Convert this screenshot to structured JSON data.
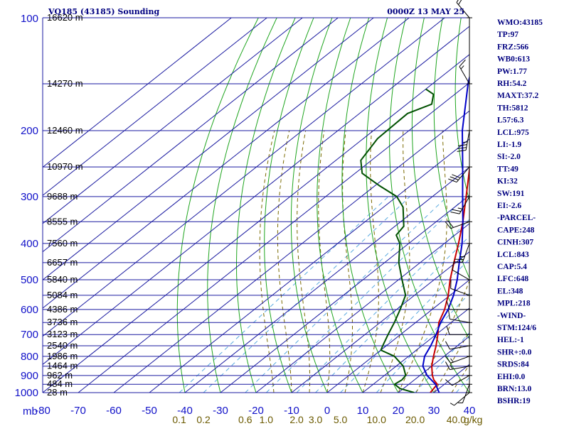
{
  "header": {
    "station": "VQ185 (43185) Sounding",
    "time": "0000Z 13 MAY 25"
  },
  "indices": [
    "WMO:43185",
    "TP:97",
    "FRZ:566",
    "WB0:613",
    "PW:1.77",
    "RH:54.2",
    "MAXT:37.2",
    "TH:5812",
    "L57:6.3",
    "LCL:975",
    "LI:-1.9",
    "SI:-2.0",
    "TT:49",
    "KI:32",
    "SW:191",
    "EI:-2.6",
    "-PARCEL-",
    "CAPE:248",
    "CINH:307",
    "LCL:843",
    "CAP:5.4",
    "LFC:648",
    "EL:348",
    "MPL:218",
    "-WIND-",
    "STM:124/6",
    "HEL:-1",
    "SHR+:0.0",
    "SRDS:84",
    "EHI:0.0",
    "BRN:13.0",
    "BSHR:19"
  ],
  "colors": {
    "isobar": "#1a1aa0",
    "isotherm": "#1a1aa0",
    "dry_adiabat": "#1fa51f",
    "moist_adiabat": "#7a6a00",
    "mixing_ratio": "#5aaae0",
    "temperature": "#c80000",
    "parcel": "#0000c8",
    "dewpoint": "#005000"
  },
  "chart_data": {
    "type": "line",
    "title": "VQ185 (43185) Sounding",
    "pressure_axis_unit": "mb",
    "ylim": [
      1000,
      100
    ],
    "xlim": [
      -80,
      40
    ],
    "pressure_ticks": [
      "100",
      "200",
      "300",
      "400",
      "500",
      "600",
      "700",
      "800",
      "900",
      "1000"
    ],
    "temperature_ticks": [
      "-80",
      "-70",
      "-60",
      "-50",
      "-40",
      "-30",
      "-20",
      "-10",
      "0",
      "10",
      "20",
      "30",
      "40"
    ],
    "mixing_ratio_ticks": [
      "0.1",
      "0.2",
      "0.6",
      "1.0",
      "2.0",
      "3.0",
      "5.0",
      "10.0",
      "20.0",
      "40.0"
    ],
    "mixing_ratio_unit": "g/kg",
    "height_labels": [
      {
        "p": 100,
        "text": "16620 m"
      },
      {
        "p": 150,
        "text": "14270 m"
      },
      {
        "p": 200,
        "text": "12460 m"
      },
      {
        "p": 250,
        "text": "10970 m"
      },
      {
        "p": 300,
        "text": "9688 m"
      },
      {
        "p": 350,
        "text": "8555 m"
      },
      {
        "p": 400,
        "text": "7560 m"
      },
      {
        "p": 450,
        "text": "6657 m"
      },
      {
        "p": 500,
        "text": "5840 m"
      },
      {
        "p": 550,
        "text": "5084 m"
      },
      {
        "p": 600,
        "text": "4386 m"
      },
      {
        "p": 650,
        "text": "3736 m"
      },
      {
        "p": 700,
        "text": "3123 m"
      },
      {
        "p": 750,
        "text": "2540 m"
      },
      {
        "p": 800,
        "text": "1986 m"
      },
      {
        "p": 850,
        "text": "1464 m"
      },
      {
        "p": 900,
        "text": "962 m"
      },
      {
        "p": 950,
        "text": "484 m"
      },
      {
        "p": 1000,
        "text": "28 m"
      }
    ],
    "series": [
      {
        "id": "temperature",
        "points": [
          {
            "p": 1000,
            "t": 29.0
          },
          {
            "p": 950,
            "t": 28.0
          },
          {
            "p": 925,
            "t": 25.5
          },
          {
            "p": 900,
            "t": 23.5
          },
          {
            "p": 850,
            "t": 20.0
          },
          {
            "p": 800,
            "t": 17.0
          },
          {
            "p": 750,
            "t": 14.0
          },
          {
            "p": 700,
            "t": 10.5
          },
          {
            "p": 650,
            "t": 6.5
          },
          {
            "p": 600,
            "t": 3.5
          },
          {
            "p": 550,
            "t": -0.5
          },
          {
            "p": 500,
            "t": -5.5
          },
          {
            "p": 450,
            "t": -10.5
          },
          {
            "p": 400,
            "t": -16.0
          },
          {
            "p": 350,
            "t": -22.5
          },
          {
            "p": 300,
            "t": -30.5
          },
          {
            "p": 250,
            "t": -40.0
          },
          {
            "p": 200,
            "t": -51.5
          },
          {
            "p": 150,
            "t": -66.5
          },
          {
            "p": 130,
            "t": -73.0
          },
          {
            "p": 120,
            "t": -77.0
          },
          {
            "p": 110,
            "t": -80.0
          }
        ]
      },
      {
        "id": "parcel",
        "points": [
          {
            "p": 1000,
            "t": 31.5
          },
          {
            "p": 950,
            "t": 27.5
          },
          {
            "p": 900,
            "t": 22.0
          },
          {
            "p": 850,
            "t": 17.5
          },
          {
            "p": 800,
            "t": 14.5
          },
          {
            "p": 750,
            "t": 12.5
          },
          {
            "p": 700,
            "t": 10.0
          },
          {
            "p": 650,
            "t": 7.0
          },
          {
            "p": 600,
            "t": 4.5
          },
          {
            "p": 550,
            "t": 1.0
          },
          {
            "p": 500,
            "t": -3.5
          },
          {
            "p": 450,
            "t": -9.0
          },
          {
            "p": 400,
            "t": -15.0
          },
          {
            "p": 350,
            "t": -22.5
          },
          {
            "p": 300,
            "t": -31.5
          },
          {
            "p": 250,
            "t": -42.0
          },
          {
            "p": 200,
            "t": -55.0
          },
          {
            "p": 150,
            "t": -70.0
          },
          {
            "p": 135,
            "t": -75.0
          },
          {
            "p": 125,
            "t": -80.0
          }
        ]
      },
      {
        "id": "dewpoint",
        "points": [
          {
            "p": 1000,
            "t": 24.5
          },
          {
            "p": 975,
            "t": 19.0
          },
          {
            "p": 950,
            "t": 16.0
          },
          {
            "p": 925,
            "t": 16.5
          },
          {
            "p": 900,
            "t": 16.0
          },
          {
            "p": 850,
            "t": 12.0
          },
          {
            "p": 800,
            "t": 6.0
          },
          {
            "p": 770,
            "t": 0.0
          },
          {
            "p": 750,
            "t": -1.0
          },
          {
            "p": 700,
            "t": -3.5
          },
          {
            "p": 650,
            "t": -6.0
          },
          {
            "p": 600,
            "t": -9.0
          },
          {
            "p": 550,
            "t": -12.5
          },
          {
            "p": 500,
            "t": -19.0
          },
          {
            "p": 450,
            "t": -26.0
          },
          {
            "p": 400,
            "t": -32.5
          },
          {
            "p": 380,
            "t": -36.5
          },
          {
            "p": 360,
            "t": -37.5
          },
          {
            "p": 320,
            "t": -44.5
          },
          {
            "p": 300,
            "t": -50.0
          },
          {
            "p": 280,
            "t": -59.0
          },
          {
            "p": 260,
            "t": -68.0
          },
          {
            "p": 240,
            "t": -73.0
          },
          {
            "p": 210,
            "t": -76.0
          },
          {
            "p": 180,
            "t": -76.5
          },
          {
            "p": 170,
            "t": -73.0
          },
          {
            "p": 160,
            "t": -76.0
          },
          {
            "p": 155,
            "t": -80.0
          }
        ]
      }
    ],
    "winds": [
      {
        "p": 1000,
        "dir": 230,
        "spd": 5
      },
      {
        "p": 950,
        "dir": 200,
        "spd": 5
      },
      {
        "p": 900,
        "dir": 240,
        "spd": 10
      },
      {
        "p": 850,
        "dir": 260,
        "spd": 15
      },
      {
        "p": 800,
        "dir": 250,
        "spd": 15
      },
      {
        "p": 750,
        "dir": 260,
        "spd": 10
      },
      {
        "p": 700,
        "dir": 270,
        "spd": 10
      },
      {
        "p": 650,
        "dir": 280,
        "spd": 10
      },
      {
        "p": 600,
        "dir": 270,
        "spd": 10
      },
      {
        "p": 550,
        "dir": 290,
        "spd": 10
      },
      {
        "p": 500,
        "dir": 300,
        "spd": 10
      },
      {
        "p": 400,
        "dir": 200,
        "spd": 25
      },
      {
        "p": 350,
        "dir": 250,
        "spd": 20
      },
      {
        "p": 300,
        "dir": 210,
        "spd": 25
      },
      {
        "p": 250,
        "dir": 220,
        "spd": 30
      },
      {
        "p": 200,
        "dir": 190,
        "spd": 35
      },
      {
        "p": 150,
        "dir": 330,
        "spd": 15
      },
      {
        "p": 100,
        "dir": 320,
        "spd": 20
      }
    ],
    "grid": true
  }
}
